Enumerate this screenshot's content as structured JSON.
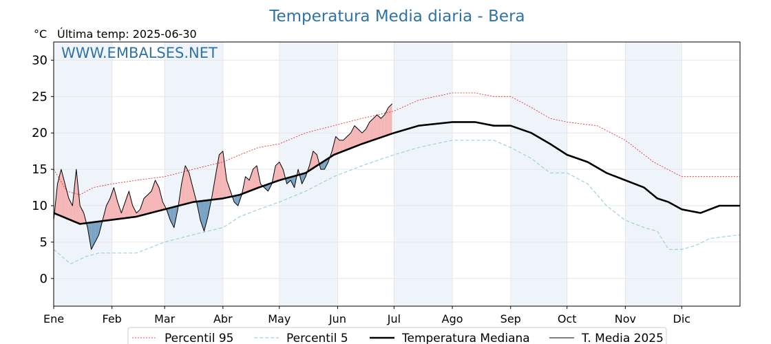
{
  "chart_data": {
    "type": "line",
    "title": "Temperatura Media diaria - Bera",
    "unit_label": "°C",
    "last_temp_label": "Última temp: 2025-06-30",
    "watermark": "WWW.EMBALSES.NET",
    "ylim": [
      -3.8,
      32.5
    ],
    "yticks": [
      0,
      5,
      10,
      15,
      20,
      25,
      30
    ],
    "xlim": [
      1,
      366
    ],
    "months": [
      "Ene",
      "Feb",
      "Mar",
      "Abr",
      "May",
      "Jun",
      "Jul",
      "Ago",
      "Sep",
      "Oct",
      "Nov",
      "Dic"
    ],
    "month_start_days": [
      1,
      32,
      60,
      91,
      121,
      152,
      182,
      213,
      244,
      274,
      305,
      335
    ],
    "grid": true,
    "legend_position": "bottom",
    "colors": {
      "p95": "#e31a1c",
      "p5": "#9ecfe0",
      "median": "#000000",
      "year": "#000000",
      "above_fill": "#f4b6b6",
      "below_fill": "#7ba4c4",
      "shade": "#eef4fa",
      "title": "#2f73a6"
    },
    "series": [
      {
        "name": "Percentil 95",
        "key": "p95",
        "points": [
          [
            1,
            15
          ],
          [
            8,
            12
          ],
          [
            15,
            11.5
          ],
          [
            22,
            12.5
          ],
          [
            32,
            13
          ],
          [
            45,
            13.5
          ],
          [
            60,
            14
          ],
          [
            75,
            15
          ],
          [
            91,
            16
          ],
          [
            100,
            17
          ],
          [
            110,
            18
          ],
          [
            121,
            18.5
          ],
          [
            135,
            20
          ],
          [
            150,
            21
          ],
          [
            165,
            22
          ],
          [
            182,
            23
          ],
          [
            195,
            24.5
          ],
          [
            213,
            25.5
          ],
          [
            225,
            25.5
          ],
          [
            235,
            25
          ],
          [
            244,
            25
          ],
          [
            255,
            23.5
          ],
          [
            265,
            22
          ],
          [
            274,
            21.5
          ],
          [
            290,
            21
          ],
          [
            305,
            19
          ],
          [
            320,
            16
          ],
          [
            335,
            14
          ],
          [
            350,
            14
          ],
          [
            366,
            14
          ]
        ]
      },
      {
        "name": "Percentil 5",
        "key": "p5",
        "points": [
          [
            1,
            4
          ],
          [
            10,
            2
          ],
          [
            18,
            3
          ],
          [
            25,
            3.5
          ],
          [
            32,
            3.5
          ],
          [
            45,
            3.5
          ],
          [
            60,
            5
          ],
          [
            75,
            6
          ],
          [
            91,
            7
          ],
          [
            100,
            8.5
          ],
          [
            110,
            9.5
          ],
          [
            121,
            10.5
          ],
          [
            135,
            12
          ],
          [
            150,
            14
          ],
          [
            165,
            15.5
          ],
          [
            182,
            17
          ],
          [
            195,
            18
          ],
          [
            213,
            19
          ],
          [
            225,
            19
          ],
          [
            235,
            19
          ],
          [
            244,
            18
          ],
          [
            255,
            16.5
          ],
          [
            265,
            14.5
          ],
          [
            274,
            14.5
          ],
          [
            285,
            13
          ],
          [
            295,
            10
          ],
          [
            305,
            8
          ],
          [
            315,
            7
          ],
          [
            322,
            6.5
          ],
          [
            328,
            4
          ],
          [
            335,
            4
          ],
          [
            342,
            4.5
          ],
          [
            350,
            5.5
          ],
          [
            366,
            6
          ]
        ]
      },
      {
        "name": "Temperatura Mediana",
        "key": "median",
        "points": [
          [
            1,
            9
          ],
          [
            15,
            7.5
          ],
          [
            30,
            8
          ],
          [
            45,
            8.5
          ],
          [
            60,
            9.5
          ],
          [
            75,
            10.5
          ],
          [
            91,
            11
          ],
          [
            100,
            11.5
          ],
          [
            110,
            12.5
          ],
          [
            121,
            13.5
          ],
          [
            135,
            14.5
          ],
          [
            150,
            17
          ],
          [
            165,
            18.5
          ],
          [
            182,
            20
          ],
          [
            195,
            21
          ],
          [
            213,
            21.5
          ],
          [
            225,
            21.5
          ],
          [
            235,
            21
          ],
          [
            244,
            21
          ],
          [
            255,
            20
          ],
          [
            265,
            18.5
          ],
          [
            274,
            17
          ],
          [
            285,
            16
          ],
          [
            295,
            14.5
          ],
          [
            305,
            13.5
          ],
          [
            315,
            12.5
          ],
          [
            322,
            11
          ],
          [
            328,
            10.5
          ],
          [
            335,
            9.5
          ],
          [
            345,
            9
          ],
          [
            355,
            10
          ],
          [
            366,
            10
          ]
        ]
      },
      {
        "name": "T. Media 2025",
        "key": "year",
        "points": [
          [
            1,
            8
          ],
          [
            3,
            13
          ],
          [
            5,
            15
          ],
          [
            7,
            13
          ],
          [
            9,
            11
          ],
          [
            11,
            10
          ],
          [
            13,
            15
          ],
          [
            15,
            10
          ],
          [
            17,
            9
          ],
          [
            19,
            7
          ],
          [
            21,
            4
          ],
          [
            23,
            5
          ],
          [
            25,
            6
          ],
          [
            27,
            8
          ],
          [
            29,
            10
          ],
          [
            31,
            11
          ],
          [
            33,
            12.5
          ],
          [
            35,
            10.5
          ],
          [
            37,
            9
          ],
          [
            39,
            10.5
          ],
          [
            41,
            12
          ],
          [
            43,
            10
          ],
          [
            45,
            9
          ],
          [
            47,
            9.5
          ],
          [
            49,
            11
          ],
          [
            51,
            11.5
          ],
          [
            53,
            12
          ],
          [
            55,
            13.5
          ],
          [
            57,
            12.5
          ],
          [
            59,
            10.5
          ],
          [
            61,
            9.5
          ],
          [
            63,
            8
          ],
          [
            65,
            7
          ],
          [
            67,
            9.5
          ],
          [
            69,
            13
          ],
          [
            71,
            15.5
          ],
          [
            73,
            14.5
          ],
          [
            75,
            12.5
          ],
          [
            77,
            10.5
          ],
          [
            79,
            8
          ],
          [
            81,
            6.5
          ],
          [
            83,
            8.5
          ],
          [
            85,
            11
          ],
          [
            87,
            14
          ],
          [
            89,
            17
          ],
          [
            91,
            17.5
          ],
          [
            93,
            13.5
          ],
          [
            95,
            12
          ],
          [
            97,
            10.5
          ],
          [
            99,
            10
          ],
          [
            101,
            11.5
          ],
          [
            103,
            14
          ],
          [
            105,
            13.5
          ],
          [
            107,
            15
          ],
          [
            109,
            15.5
          ],
          [
            111,
            13
          ],
          [
            113,
            12.5
          ],
          [
            115,
            12
          ],
          [
            117,
            13
          ],
          [
            119,
            15.5
          ],
          [
            121,
            16
          ],
          [
            123,
            15
          ],
          [
            125,
            13
          ],
          [
            127,
            13.5
          ],
          [
            129,
            12.5
          ],
          [
            131,
            15
          ],
          [
            133,
            13
          ],
          [
            135,
            14
          ],
          [
            137,
            15.5
          ],
          [
            139,
            17.5
          ],
          [
            141,
            17
          ],
          [
            143,
            15
          ],
          [
            145,
            15
          ],
          [
            147,
            16
          ],
          [
            149,
            17.5
          ],
          [
            151,
            19.5
          ],
          [
            153,
            19
          ],
          [
            155,
            19
          ],
          [
            157,
            19.5
          ],
          [
            159,
            20
          ],
          [
            161,
            21
          ],
          [
            163,
            20.5
          ],
          [
            165,
            20
          ],
          [
            167,
            20.5
          ],
          [
            169,
            21.5
          ],
          [
            171,
            22
          ],
          [
            173,
            22.5
          ],
          [
            175,
            22
          ],
          [
            177,
            22.5
          ],
          [
            179,
            23.5
          ],
          [
            181,
            24
          ]
        ]
      }
    ]
  },
  "legend": {
    "p95": "Percentil 95",
    "p5": "Percentil 5",
    "median": "Temperatura Mediana",
    "year": "T. Media 2025"
  }
}
